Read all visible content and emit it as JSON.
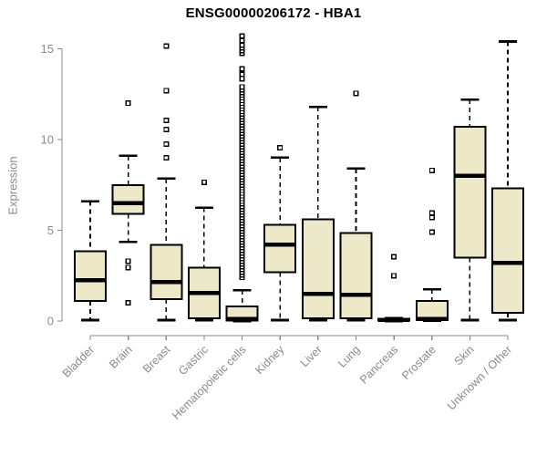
{
  "chart_data": {
    "type": "boxplot",
    "title": "ENSG00000206172 - HBA1",
    "ylabel": "Expression",
    "xlabel": "",
    "ylim": [
      0,
      15.8
    ],
    "yticks": [
      0,
      5,
      10,
      15
    ],
    "grid": false,
    "legend": "none",
    "colors": {
      "box_fill": "#EDE8C8",
      "box_stroke": "#000000",
      "median": "#000000",
      "whisker": "#000000",
      "axis": "#8a8a8a",
      "tick_label": "#8a8a8a",
      "title": "#000000",
      "background": "#ffffff"
    },
    "categories": [
      "Bladder",
      "Brain",
      "Breast",
      "Gastric",
      "Hematopoietic cells",
      "Kidney",
      "Liver",
      "Lung",
      "Pancreas",
      "Prostate",
      "Skin",
      "Unknown / Other"
    ],
    "series": [
      {
        "category": "Bladder",
        "min": 0.05,
        "q1": 1.1,
        "median": 2.25,
        "q3": 3.85,
        "max": 6.6,
        "outliers": []
      },
      {
        "category": "Brain",
        "min": 4.35,
        "q1": 5.9,
        "median": 6.5,
        "q3": 7.5,
        "max": 9.1,
        "outliers": [
          12.0,
          3.3,
          2.95,
          1.0
        ]
      },
      {
        "category": "Breast",
        "min": 0.05,
        "q1": 1.2,
        "median": 2.15,
        "q3": 4.2,
        "max": 7.85,
        "outliers": [
          15.15,
          12.7,
          11.05,
          10.55,
          9.75,
          9.0
        ]
      },
      {
        "category": "Gastric",
        "min": 0.03,
        "q1": 0.15,
        "median": 1.55,
        "q3": 2.95,
        "max": 6.25,
        "outliers": [
          7.65
        ]
      },
      {
        "category": "Hematopoietic cells",
        "min": 0.0,
        "q1": 0.03,
        "median": 0.12,
        "q3": 0.8,
        "max": 1.7,
        "outliers": [
          2.4,
          2.55,
          2.7,
          2.85,
          3.0,
          3.15,
          3.3,
          3.45,
          3.6,
          3.75,
          3.9,
          4.05,
          4.2,
          4.35,
          4.5,
          4.65,
          4.8,
          4.95,
          5.1,
          5.25,
          5.4,
          5.55,
          5.7,
          5.85,
          6.0,
          6.15,
          6.3,
          6.45,
          6.6,
          6.75,
          6.9,
          7.05,
          7.2,
          7.35,
          7.5,
          7.65,
          7.8,
          7.95,
          8.1,
          8.25,
          8.4,
          8.55,
          8.7,
          8.85,
          9.0,
          9.15,
          9.3,
          9.45,
          9.6,
          9.75,
          9.9,
          10.05,
          10.2,
          10.35,
          10.5,
          10.65,
          10.8,
          10.95,
          11.1,
          11.25,
          11.4,
          11.55,
          11.7,
          11.85,
          12.0,
          12.15,
          12.3,
          12.45,
          12.6,
          12.75,
          12.9,
          13.35,
          13.6,
          13.9,
          14.75,
          14.9,
          15.05,
          15.2,
          15.45,
          15.7
        ]
      },
      {
        "category": "Kidney",
        "min": 0.05,
        "q1": 2.7,
        "median": 4.2,
        "q3": 5.3,
        "max": 9.0,
        "outliers": [
          9.55
        ]
      },
      {
        "category": "Liver",
        "min": 0.05,
        "q1": 0.15,
        "median": 1.5,
        "q3": 5.6,
        "max": 11.8,
        "outliers": []
      },
      {
        "category": "Lung",
        "min": 0.05,
        "q1": 0.15,
        "median": 1.45,
        "q3": 4.85,
        "max": 8.4,
        "outliers": [
          12.55
        ]
      },
      {
        "category": "Pancreas",
        "min": 0.0,
        "q1": 0.02,
        "median": 0.07,
        "q3": 0.12,
        "max": 0.15,
        "outliers": [
          3.55,
          2.5
        ]
      },
      {
        "category": "Prostate",
        "min": 0.02,
        "q1": 0.05,
        "median": 0.12,
        "q3": 1.1,
        "max": 1.75,
        "outliers": [
          8.3,
          5.95,
          5.7,
          4.9
        ]
      },
      {
        "category": "Skin",
        "min": 0.05,
        "q1": 3.5,
        "median": 8.0,
        "q3": 10.7,
        "max": 12.2,
        "outliers": []
      },
      {
        "category": "Unknown / Other",
        "min": 0.05,
        "q1": 0.45,
        "median": 3.2,
        "q3": 7.3,
        "max": 15.4,
        "outliers": []
      }
    ]
  }
}
